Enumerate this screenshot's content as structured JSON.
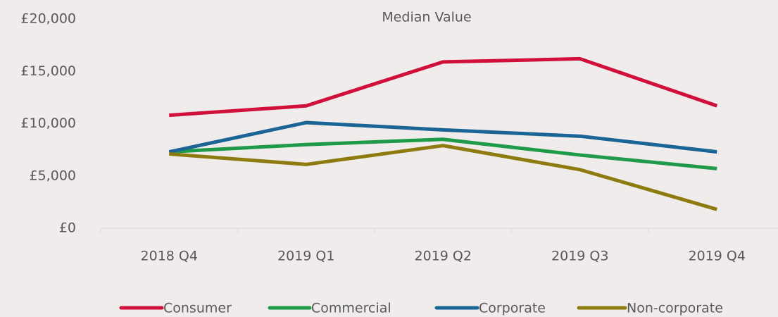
{
  "chart_data": {
    "type": "line",
    "title": "Median Value",
    "categories": [
      "2018 Q4",
      "2019 Q1",
      "2019 Q2",
      "2019 Q3",
      "2019 Q4"
    ],
    "series": [
      {
        "name": "Consumer",
        "color": "#d0103a",
        "values": [
          10800,
          11700,
          15900,
          16200,
          11700
        ]
      },
      {
        "name": "Commercial",
        "color": "#1f9a48",
        "values": [
          7300,
          8000,
          8500,
          7000,
          5700
        ]
      },
      {
        "name": "Corporate",
        "color": "#1a6496",
        "values": [
          7300,
          10100,
          9400,
          8800,
          7300
        ]
      },
      {
        "name": "Non-corporate",
        "color": "#8d7b10",
        "values": [
          7100,
          6100,
          7900,
          5600,
          1800
        ]
      }
    ],
    "ylim": [
      0,
      20000
    ],
    "yticks": [
      {
        "value": 0,
        "label": "£0"
      },
      {
        "value": 5000,
        "label": "£5,000"
      },
      {
        "value": 10000,
        "label": "£10,000"
      },
      {
        "value": 15000,
        "label": "£15,000"
      },
      {
        "value": 20000,
        "label": "£20,000"
      }
    ],
    "legend": "bottom"
  }
}
